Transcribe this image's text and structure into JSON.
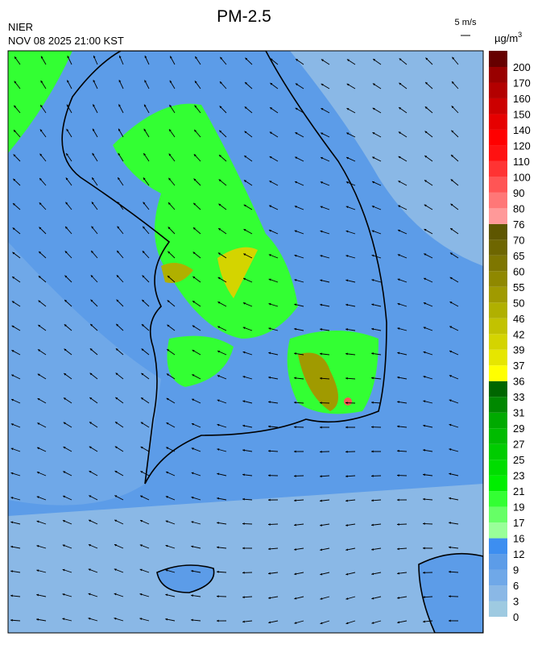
{
  "header": {
    "title": "PM-2.5",
    "agency": "NIER",
    "timestamp": "NOV 08 2025 21:00 KST",
    "wind_scale": "5 m/s"
  },
  "legend": {
    "unit": "µg/m",
    "unit_exponent": "3",
    "levels": [
      0,
      3,
      6,
      9,
      12,
      16,
      17,
      19,
      21,
      23,
      25,
      27,
      29,
      31,
      33,
      36,
      37,
      39,
      42,
      46,
      50,
      55,
      60,
      65,
      70,
      76,
      80,
      90,
      100,
      110,
      120,
      140,
      150,
      160,
      170,
      200
    ],
    "colors": [
      "#9ecae1",
      "#8ab8e6",
      "#6fa8e8",
      "#5c9ce8",
      "#3d8ef0",
      "#99ff99",
      "#66ff66",
      "#33ff33",
      "#00ee00",
      "#00dd00",
      "#00cc00",
      "#00bb00",
      "#00aa00",
      "#008800",
      "#006600",
      "#ffff00",
      "#e6e600",
      "#d4d400",
      "#c2c200",
      "#b0b000",
      "#a09a00",
      "#8f8800",
      "#7e7600",
      "#6e6600",
      "#5e5600",
      "#ff9999",
      "#ff7777",
      "#ff5555",
      "#ff3333",
      "#ff1111",
      "#ff0000",
      "#e60000",
      "#cc0000",
      "#b30000",
      "#990000",
      "#660000"
    ]
  }
}
